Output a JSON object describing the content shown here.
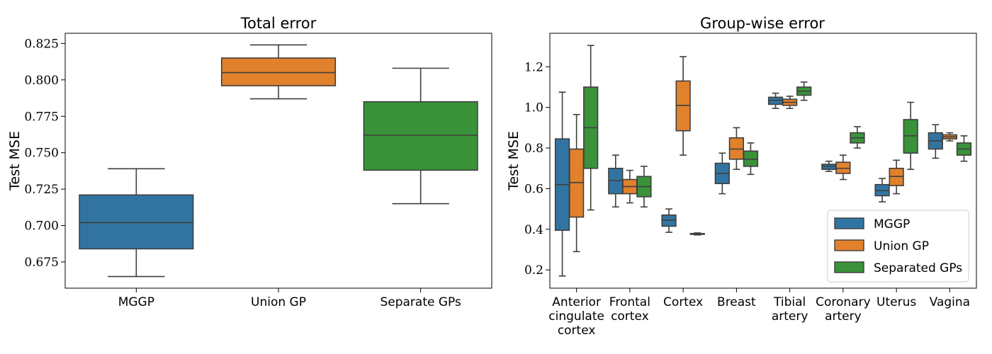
{
  "chart_data": [
    {
      "type": "box",
      "title": "Total error",
      "xlabel": "",
      "ylabel": "Test MSE",
      "ylim": [
        0.657,
        0.832
      ],
      "yticks": [
        "0.675",
        "0.700",
        "0.725",
        "0.750",
        "0.775",
        "0.800",
        "0.825"
      ],
      "categories": [
        "MGGP",
        "Union GP",
        "Separate GPs"
      ],
      "boxes": [
        {
          "category": "MGGP",
          "whislo": 0.665,
          "q1": 0.684,
          "med": 0.702,
          "q3": 0.721,
          "whishi": 0.739,
          "color": "#3274a1"
        },
        {
          "category": "Union GP",
          "whislo": 0.787,
          "q1": 0.796,
          "med": 0.805,
          "q3": 0.815,
          "whishi": 0.824,
          "color": "#e1812c"
        },
        {
          "category": "Separate GPs",
          "whislo": 0.715,
          "q1": 0.738,
          "med": 0.762,
          "q3": 0.785,
          "whishi": 0.808,
          "color": "#3a923a"
        }
      ]
    },
    {
      "type": "box",
      "title": "Group-wise error",
      "xlabel": "",
      "ylabel": "Test MSE",
      "ylim": [
        0.11,
        1.365
      ],
      "yticks": [
        "0.2",
        "0.4",
        "0.6",
        "0.8",
        "1.0",
        "1.2"
      ],
      "categories": [
        [
          "Anterior",
          "cingulate",
          "cortex"
        ],
        [
          "Frontal",
          "cortex"
        ],
        [
          "Cortex"
        ],
        [
          "Breast"
        ],
        [
          "Tibial",
          "artery"
        ],
        [
          "Coronary",
          "artery"
        ],
        [
          "Uterus"
        ],
        [
          "Vagina"
        ]
      ],
      "series": [
        {
          "name": "MGGP",
          "color": "#3274a1",
          "boxes": [
            {
              "whislo": 0.17,
              "q1": 0.395,
              "med": 0.62,
              "q3": 0.845,
              "whishi": 1.075
            },
            {
              "whislo": 0.51,
              "q1": 0.575,
              "med": 0.64,
              "q3": 0.7,
              "whishi": 0.765
            },
            {
              "whislo": 0.385,
              "q1": 0.415,
              "med": 0.445,
              "q3": 0.47,
              "whishi": 0.5
            },
            {
              "whislo": 0.575,
              "q1": 0.625,
              "med": 0.675,
              "q3": 0.725,
              "whishi": 0.775
            },
            {
              "whislo": 0.995,
              "q1": 1.015,
              "med": 1.035,
              "q3": 1.05,
              "whishi": 1.07
            },
            {
              "whislo": 0.685,
              "q1": 0.695,
              "med": 0.71,
              "q3": 0.72,
              "whishi": 0.735
            },
            {
              "whislo": 0.535,
              "q1": 0.565,
              "med": 0.59,
              "q3": 0.62,
              "whishi": 0.65
            },
            {
              "whislo": 0.75,
              "q1": 0.795,
              "med": 0.835,
              "q3": 0.875,
              "whishi": 0.915
            }
          ]
        },
        {
          "name": "Union GP",
          "color": "#e1812c",
          "boxes": [
            {
              "whislo": 0.29,
              "q1": 0.46,
              "med": 0.63,
              "q3": 0.795,
              "whishi": 0.965
            },
            {
              "whislo": 0.53,
              "q1": 0.575,
              "med": 0.61,
              "q3": 0.645,
              "whishi": 0.69
            },
            {
              "whislo": 0.765,
              "q1": 0.885,
              "med": 1.01,
              "q3": 1.13,
              "whishi": 1.25
            },
            {
              "whislo": 0.695,
              "q1": 0.745,
              "med": 0.795,
              "q3": 0.85,
              "whishi": 0.9
            },
            {
              "whislo": 0.995,
              "q1": 1.01,
              "med": 1.025,
              "q3": 1.04,
              "whishi": 1.055
            },
            {
              "whislo": 0.645,
              "q1": 0.675,
              "med": 0.7,
              "q3": 0.73,
              "whishi": 0.765
            },
            {
              "whislo": 0.575,
              "q1": 0.615,
              "med": 0.66,
              "q3": 0.7,
              "whishi": 0.74
            },
            {
              "whislo": 0.835,
              "q1": 0.845,
              "med": 0.855,
              "q3": 0.865,
              "whishi": 0.875
            }
          ]
        },
        {
          "name": "Separated GPs",
          "color": "#3a923a",
          "boxes": [
            {
              "whislo": 0.495,
              "q1": 0.7,
              "med": 0.9,
              "q3": 1.1,
              "whishi": 1.305
            },
            {
              "whislo": 0.51,
              "q1": 0.56,
              "med": 0.61,
              "q3": 0.66,
              "whishi": 0.71
            },
            {
              "whislo": 0.372,
              "q1": 0.375,
              "med": 0.377,
              "q3": 0.379,
              "whishi": 0.382
            },
            {
              "whislo": 0.67,
              "q1": 0.71,
              "med": 0.745,
              "q3": 0.785,
              "whishi": 0.825
            },
            {
              "whislo": 1.035,
              "q1": 1.06,
              "med": 1.08,
              "q3": 1.1,
              "whishi": 1.125
            },
            {
              "whislo": 0.8,
              "q1": 0.825,
              "med": 0.85,
              "q3": 0.875,
              "whishi": 0.905
            },
            {
              "whislo": 0.695,
              "q1": 0.775,
              "med": 0.86,
              "q3": 0.94,
              "whishi": 1.025
            },
            {
              "whislo": 0.735,
              "q1": 0.765,
              "med": 0.795,
              "q3": 0.825,
              "whishi": 0.86
            }
          ]
        }
      ],
      "legend": {
        "placement": "lower-right",
        "entries": [
          "MGGP",
          "Union GP",
          "Separated GPs"
        ]
      }
    }
  ]
}
